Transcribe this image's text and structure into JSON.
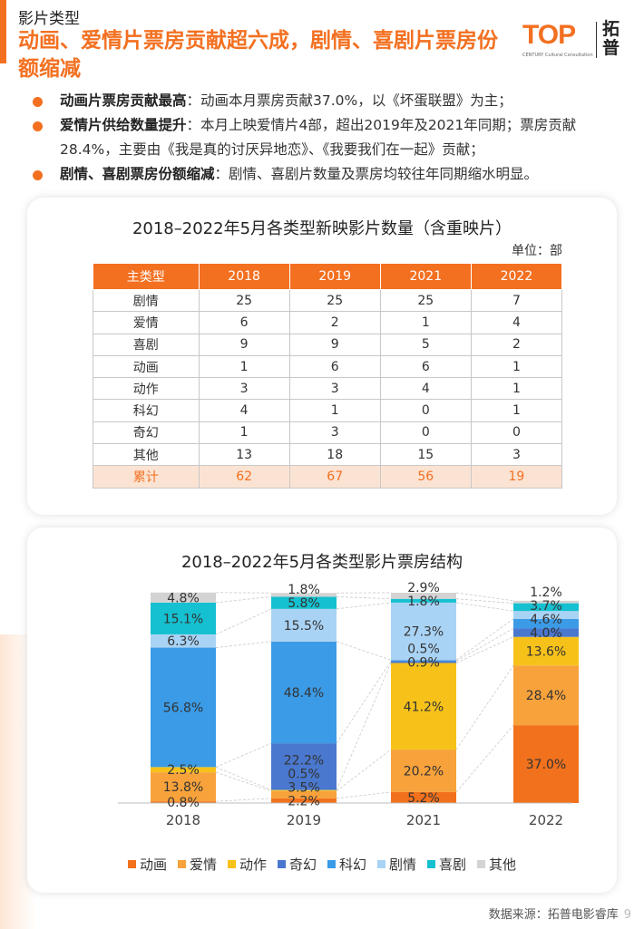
{
  "section_title": "影片类型",
  "headline": "动画、爱情片票房贡献超六成，剧情、喜剧片票房份额缩减",
  "logo": {
    "mark": "TOP",
    "cn": "拓普",
    "sub": "CENTURY Cultural Consultation"
  },
  "bullets": [
    {
      "label": "动画片票房贡献最高",
      "text": "：动画本月票房贡献37.0%，以《坏蛋联盟》为主；"
    },
    {
      "label": "爱情片供给数量提升",
      "text": "：本月上映爱情片4部，超出2019年及2021年同期；票房贡献28.4%，主要由《我是真的讨厌异地恋》、《我要我们在一起》贡献；"
    },
    {
      "label": "剧情、喜剧票房份额缩减",
      "text": "：剧情、喜剧片数量及票房均较往年同期缩水明显。"
    }
  ],
  "table": {
    "title": "2018–2022年5月各类型新映影片数量（含重映片）",
    "unit": "单位：部",
    "headers": [
      "主类型",
      "2018",
      "2019",
      "2021",
      "2022"
    ],
    "rows": [
      [
        "剧情",
        "25",
        "25",
        "25",
        "7"
      ],
      [
        "爱情",
        "6",
        "2",
        "1",
        "4"
      ],
      [
        "喜剧",
        "9",
        "9",
        "5",
        "2"
      ],
      [
        "动画",
        "1",
        "6",
        "6",
        "1"
      ],
      [
        "动作",
        "3",
        "3",
        "4",
        "1"
      ],
      [
        "科幻",
        "4",
        "1",
        "0",
        "1"
      ],
      [
        "奇幻",
        "1",
        "3",
        "0",
        "0"
      ],
      [
        "其他",
        "13",
        "18",
        "15",
        "3"
      ]
    ],
    "total": [
      "累计",
      "62",
      "67",
      "56",
      "19"
    ]
  },
  "chart_data": {
    "type": "bar",
    "stacked": true,
    "title": "2018–2022年5月各类型影片票房结构",
    "categories": [
      "2018",
      "2019",
      "2021",
      "2022"
    ],
    "series": [
      {
        "name": "动画",
        "color": "#f2711c",
        "values": [
          0.8,
          2.2,
          5.2,
          37.0
        ]
      },
      {
        "name": "爱情",
        "color": "#f7a23b",
        "values": [
          13.8,
          3.5,
          20.2,
          28.4
        ]
      },
      {
        "name": "动作",
        "color": "#f6c21a",
        "values": [
          2.5,
          0.5,
          41.2,
          13.6
        ]
      },
      {
        "name": "奇幻",
        "color": "#4a78cf",
        "values": [
          0,
          22.2,
          0.9,
          4.0
        ]
      },
      {
        "name": "科幻",
        "color": "#3b9be6",
        "values": [
          56.8,
          48.4,
          0.5,
          4.6
        ]
      },
      {
        "name": "剧情",
        "color": "#a9d3f5",
        "values": [
          6.3,
          15.5,
          27.3,
          3.7
        ]
      },
      {
        "name": "喜剧",
        "color": "#15c0d0",
        "values": [
          15.1,
          5.8,
          1.8,
          3.7
        ]
      },
      {
        "name": "其他",
        "color": "#d3d3d3",
        "values": [
          4.8,
          1.8,
          2.9,
          1.2
        ]
      }
    ],
    "labels": [
      [
        "0.8%",
        "13.8%",
        "2.5%",
        "",
        "56.8%",
        "6.3%",
        "15.1%",
        "4.8%"
      ],
      [
        "2.2%",
        "3.5%",
        "0.5%",
        "22.2%",
        "48.4%",
        "15.5%",
        "5.8%",
        "1.8%"
      ],
      [
        "5.2%",
        "20.2%",
        "41.2%",
        "0.9%",
        "0.5%",
        "27.3%",
        "1.8%",
        "2.9%"
      ],
      [
        "37.0%",
        "28.4%",
        "13.6%",
        "4.0%",
        "4.6%",
        "",
        "3.7%",
        "1.2%"
      ]
    ],
    "ylim": [
      0,
      100
    ],
    "legend_position": "bottom"
  },
  "source": "数据来源：拓普电影睿库",
  "page_number": "9"
}
